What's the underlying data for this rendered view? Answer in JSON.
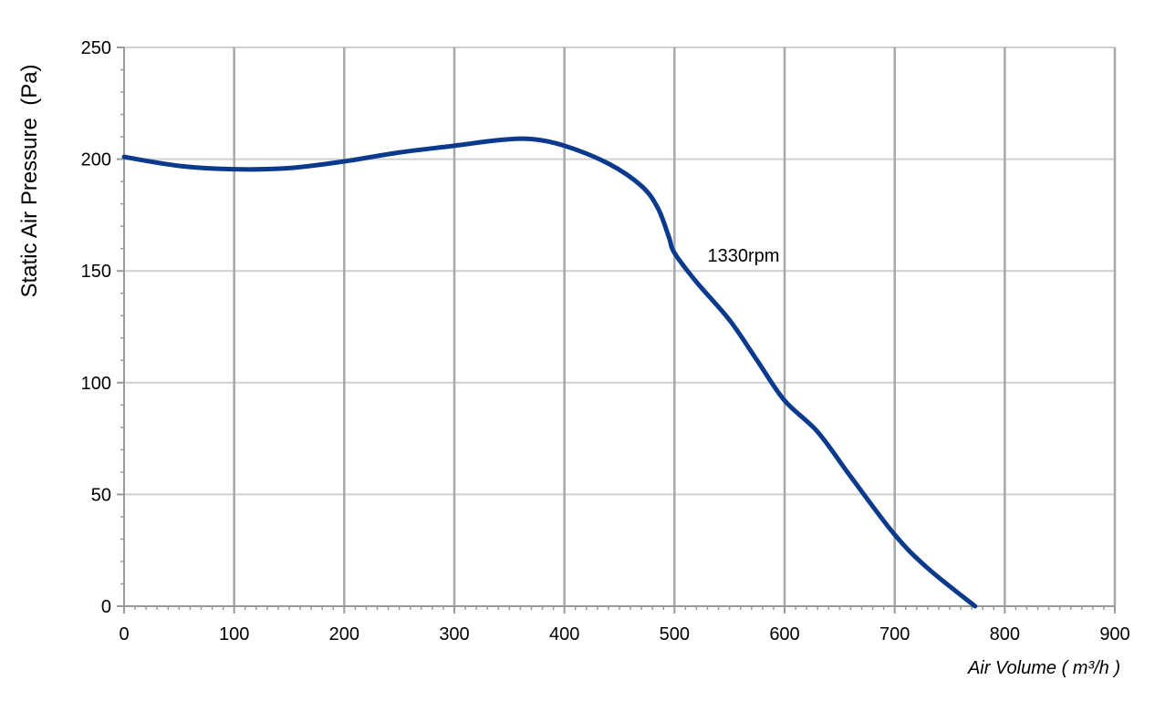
{
  "chart_data": {
    "type": "line",
    "ylabel": "Static Air Pressure  (Pa)",
    "xlabel": "Air Volume ( m³/h )",
    "xlim": [
      0,
      900
    ],
    "ylim": [
      0,
      250
    ],
    "x_ticks": [
      "0",
      "100",
      "200",
      "300",
      "400",
      "500",
      "600",
      "700",
      "800",
      "900"
    ],
    "y_ticks": [
      "0",
      "50",
      "100",
      "150",
      "200",
      "250"
    ],
    "grid": true,
    "series": [
      {
        "name": "1330rpm",
        "color": "#0b3a8c",
        "points": [
          [
            0,
            201
          ],
          [
            50,
            197
          ],
          [
            100,
            195.5
          ],
          [
            150,
            196
          ],
          [
            200,
            199
          ],
          [
            250,
            203
          ],
          [
            300,
            206
          ],
          [
            340,
            208.5
          ],
          [
            370,
            209
          ],
          [
            400,
            206
          ],
          [
            440,
            198
          ],
          [
            470,
            188
          ],
          [
            485,
            178
          ],
          [
            495,
            165
          ],
          [
            500,
            158
          ],
          [
            520,
            145
          ],
          [
            550,
            128
          ],
          [
            575,
            110
          ],
          [
            600,
            92
          ],
          [
            630,
            78
          ],
          [
            660,
            58
          ],
          [
            700,
            32
          ],
          [
            730,
            17
          ],
          [
            773,
            0
          ]
        ]
      }
    ],
    "annotations": [
      {
        "text": "1330rpm",
        "x": 530,
        "y": 157
      }
    ]
  }
}
